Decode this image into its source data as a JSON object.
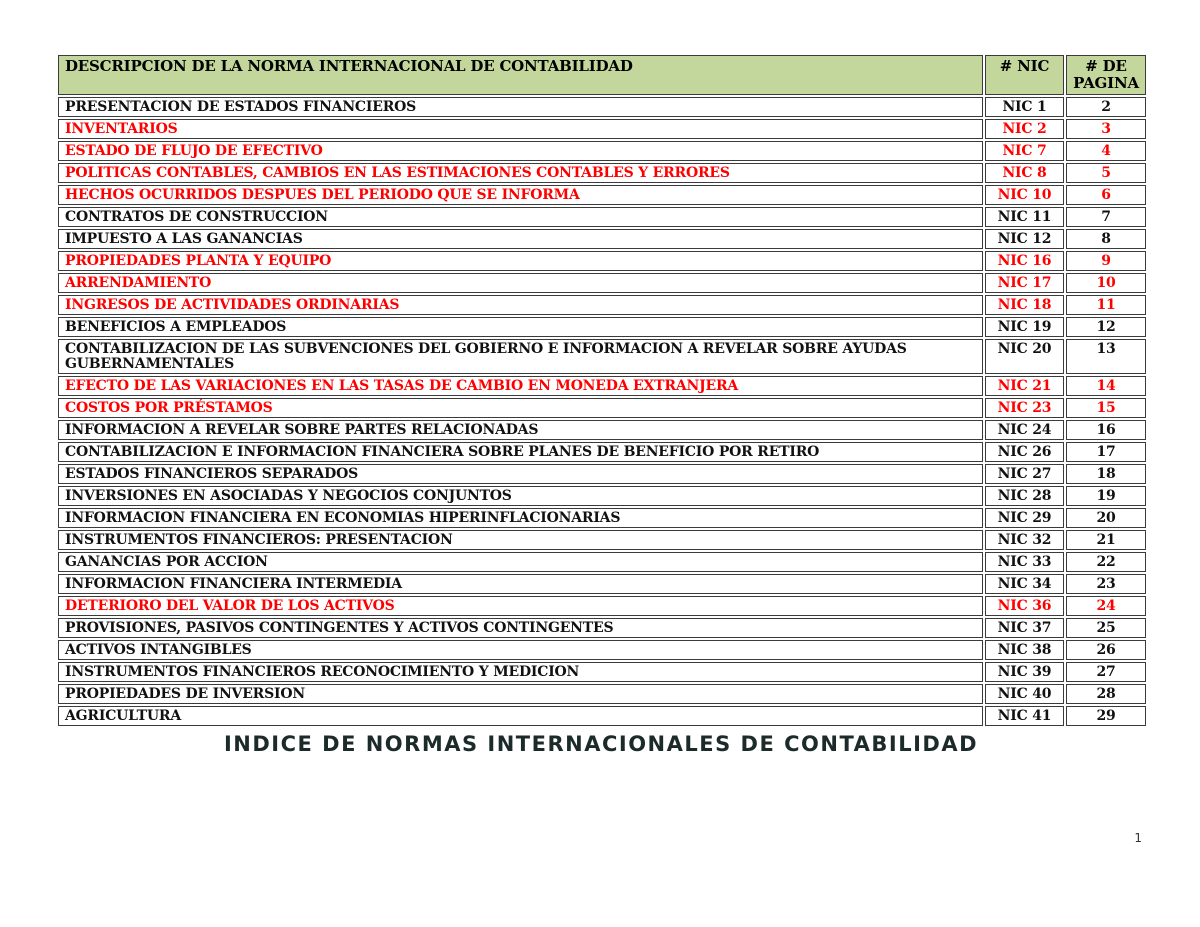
{
  "page": {
    "caption": "INDICE DE NORMAS INTERNACIONALES DE CONTABILIDAD",
    "page_number": "1"
  },
  "colors": {
    "header_bg": "#c3d69b",
    "red_text": "#ff0000",
    "black_text": "#111111",
    "border": "#3b3b3b"
  },
  "table": {
    "headers": {
      "description": "DESCRIPCION DE LA NORMA INTERNACIONAL DE CONTABILIDAD",
      "nic": "# NIC",
      "page": "# DE PAGINA"
    },
    "rows": [
      {
        "description": "PRESENTACION DE ESTADOS FINANCIEROS",
        "nic": "NIC 1",
        "page": "2",
        "color": "black"
      },
      {
        "description": "INVENTARIOS",
        "nic": "NIC 2",
        "page": "3",
        "color": "red"
      },
      {
        "description": "ESTADO DE FLUJO DE EFECTIVO",
        "nic": "NIC 7",
        "page": "4",
        "color": "red"
      },
      {
        "description": "POLITICAS CONTABLES, CAMBIOS EN LAS  ESTIMACIONES CONTABLES Y ERRORES",
        "nic": "NIC 8",
        "page": "5",
        "color": "red"
      },
      {
        "description": "HECHOS OCURRIDOS DESPUES DEL PERIODO QUE SE INFORMA",
        "nic": "NIC 10",
        "page": "6",
        "color": "red"
      },
      {
        "description": "CONTRATOS DE CONSTRUCCION",
        "nic": "NIC 11",
        "page": "7",
        "color": "black"
      },
      {
        "description": "IMPUESTO A LAS GANANCIAS",
        "nic": "NIC 12",
        "page": "8",
        "color": "black"
      },
      {
        "description": "PROPIEDADES PLANTA Y EQUIPO",
        "nic": "NIC 16",
        "page": "9",
        "color": "red"
      },
      {
        "description": "ARRENDAMIENTO",
        "nic": "NIC 17",
        "page": "10",
        "color": "red"
      },
      {
        "description": "INGRESOS DE ACTIVIDADES ORDINARIAS",
        "nic": "NIC 18",
        "page": "11",
        "color": "red"
      },
      {
        "description": "BENEFICIOS A EMPLEADOS",
        "nic": "NIC 19",
        "page": "12",
        "color": "black"
      },
      {
        "description": "CONTABILIZACION DE LAS SUBVENCIONES DEL GOBIERNO E INFORMACION A REVELAR SOBRE AYUDAS GUBERNAMENTALES",
        "nic": "NIC 20",
        "page": "13",
        "color": "black"
      },
      {
        "description": "EFECTO DE LAS VARIACIONES EN LAS TASAS DE CAMBIO EN MONEDA EXTRANJERA",
        "nic": "NIC 21",
        "page": "14",
        "color": "red"
      },
      {
        "description": "COSTOS POR PRÉSTAMOS",
        "nic": "NIC 23",
        "page": "15",
        "color": "red"
      },
      {
        "description": "INFORMACION A REVELAR SOBRE PARTES RELACIONADAS",
        "nic": "NIC 24",
        "page": "16",
        "color": "black"
      },
      {
        "description": "CONTABILIZACION E INFORMACION FINANCIERA SOBRE PLANES DE BENEFICIO POR RETIRO",
        "nic": "NIC 26",
        "page": "17",
        "color": "black"
      },
      {
        "description": "ESTADOS FINANCIEROS SEPARADOS",
        "nic": "NIC 27",
        "page": "18",
        "color": "black"
      },
      {
        "description": "INVERSIONES EN ASOCIADAS Y NEGOCIOS CONJUNTOS",
        "nic": "NIC 28",
        "page": "19",
        "color": "black"
      },
      {
        "description": "INFORMACION FINANCIERA EN ECONOMIAS HIPERINFLACIONARIAS",
        "nic": "NIC 29",
        "page": "20",
        "color": "black"
      },
      {
        "description": "INSTRUMENTOS FINANCIEROS: PRESENTACION",
        "nic": "NIC 32",
        "page": "21",
        "color": "black"
      },
      {
        "description": "GANANCIAS POR ACCION",
        "nic": "NIC 33",
        "page": "22",
        "color": "black"
      },
      {
        "description": "INFORMACION FINANCIERA INTERMEDIA",
        "nic": "NIC 34",
        "page": "23",
        "color": "black"
      },
      {
        "description": "DETERIORO DEL VALOR  DE LOS ACTIVOS",
        "nic": "NIC 36",
        "page": "24",
        "color": "red"
      },
      {
        "description": "PROVISIONES, PASIVOS CONTINGENTES Y ACTIVOS CONTINGENTES",
        "nic": "NIC 37",
        "page": "25",
        "color": "black"
      },
      {
        "description": "ACTIVOS INTANGIBLES",
        "nic": "NIC 38",
        "page": "26",
        "color": "black"
      },
      {
        "description": "INSTRUMENTOS FINANCIEROS RECONOCIMIENTO Y MEDICION",
        "nic": "NIC 39",
        "page": "27",
        "color": "black"
      },
      {
        "description": "PROPIEDADES DE INVERSION",
        "nic": "NIC 40",
        "page": "28",
        "color": "black"
      },
      {
        "description": "AGRICULTURA",
        "nic": "NIC 41",
        "page": "29",
        "color": "black"
      }
    ]
  }
}
